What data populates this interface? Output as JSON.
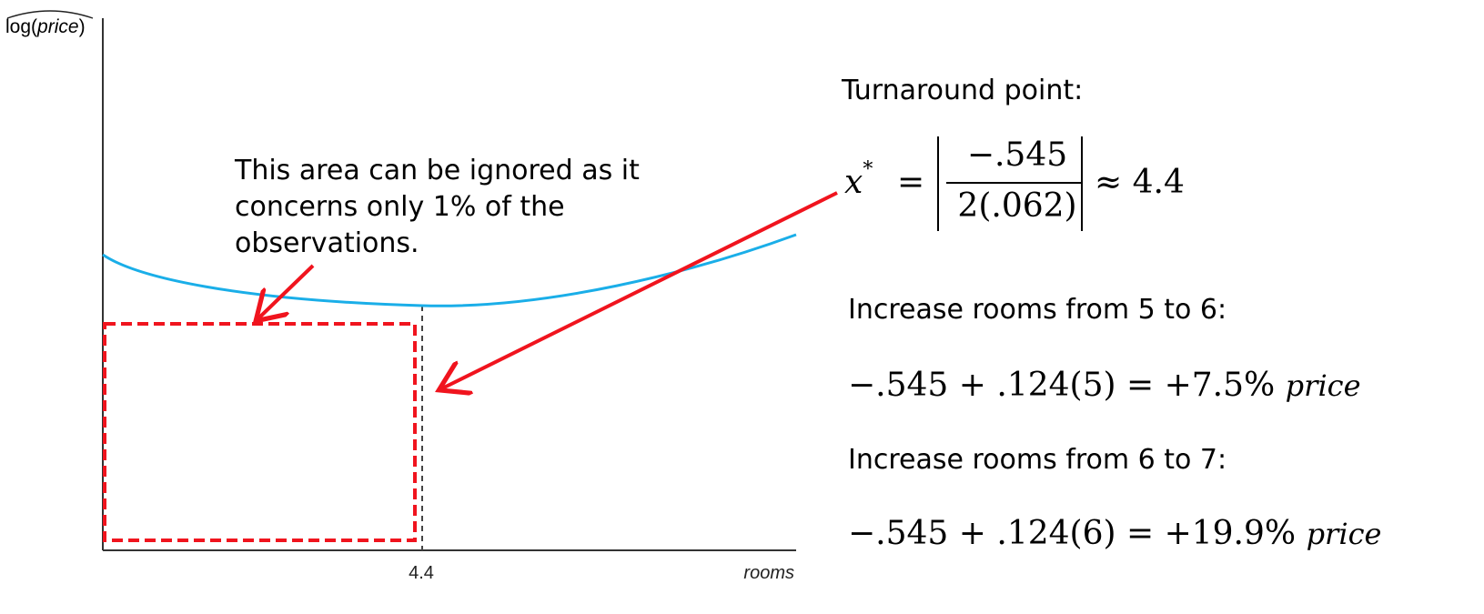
{
  "chart_data": {
    "type": "line",
    "xlabel": "rooms",
    "ylabel": "log(price)",
    "x_ticks": [
      "4.4"
    ],
    "turnaround": 4.4,
    "series": [
      {
        "values_description_omitted": true
      }
    ],
    "annotations": {
      "note": "This area can be ignored as it concerns only 1% of the observations.",
      "turnaround_title": "Turnaround point:",
      "turnaround_formula": "x* = |−.545 / 2(.062)| ≈ 4.4",
      "increase_5_6_title": "Increase rooms from 5 to 6:",
      "increase_5_6_formula": "−.545 + .124(5) = +7.5% price",
      "increase_6_7_title": "Increase rooms from 6 to 7:",
      "increase_6_7_formula": "−.545 + .124(6) = +19.9% price"
    }
  },
  "colors": {
    "curve": "#1aaee8",
    "arrow": "#f0141e",
    "axis": "#333333"
  },
  "text": {
    "ylabel_prefix": "log(",
    "ylabel_var": "price",
    "ylabel_suffix": ")",
    "xlabel": "rooms",
    "xtick": "4.4",
    "note": "This area can be ignored as it concerns only 1% of the observations.",
    "turn_title": "Turnaround point:",
    "turn_lhs": "x",
    "turn_star": "*",
    "turn_eq": "=",
    "turn_num": "−.545",
    "turn_den": "2(.062)",
    "turn_approx": "≈ 4.4",
    "inc1_title": "Increase rooms from 5 to 6:",
    "inc1_formula": "−.545 + .124(5) = +7.5%",
    "inc1_var": "price",
    "inc2_title": "Increase rooms from 6 to 7:",
    "inc2_formula": "−.545 + .124(6) = +19.9%",
    "inc2_var": "price"
  }
}
